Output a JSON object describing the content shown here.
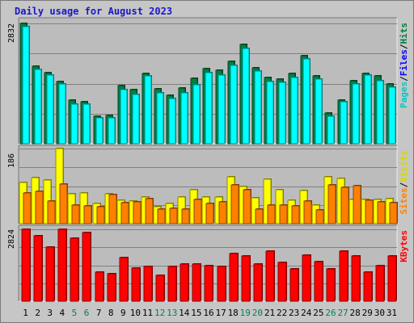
{
  "title": "Daily usage for August 2023",
  "chart_data": [
    {
      "type": "bar",
      "panel": "hits-files-pages",
      "categories": [
        "1",
        "2",
        "3",
        "4",
        "5",
        "6",
        "7",
        "8",
        "9",
        "10",
        "11",
        "12",
        "13",
        "14",
        "15",
        "16",
        "17",
        "18",
        "19",
        "20",
        "21",
        "22",
        "23",
        "24",
        "25",
        "26",
        "27",
        "28",
        "29",
        "30",
        "31"
      ],
      "weekend_days": [
        "5",
        "6",
        "12",
        "13",
        "19",
        "20",
        "26",
        "27"
      ],
      "y_max_label": "2832",
      "ylim": [
        0,
        2832
      ],
      "grid": true,
      "series": [
        {
          "name": "Hits",
          "color": "#008040",
          "values": [
            2832,
            1819,
            1669,
            1469,
            1028,
            990,
            652,
            668,
            1360,
            1275,
            1650,
            1291,
            1138,
            1312,
            1531,
            1763,
            1722,
            1939,
            2335,
            1793,
            1564,
            1522,
            1645,
            2075,
            1600,
            729,
            1032,
            1482,
            1647,
            1599,
            1399
          ]
        },
        {
          "name": "Files",
          "color": "#0000ff",
          "values": [
            2750,
            1750,
            1609,
            1399,
            932,
            940,
            602,
            614,
            1274,
            1167,
            1595,
            1195,
            1061,
            1191,
            1390,
            1674,
            1612,
            1836,
            2250,
            1715,
            1463,
            1440,
            1566,
            1995,
            1524,
            650,
            979,
            1407,
            1619,
            1487,
            1325
          ]
        },
        {
          "name": "Pages",
          "color": "#00ffff",
          "values": [
            2750,
            1750,
            1609,
            1399,
            932,
            940,
            602,
            614,
            1274,
            1167,
            1595,
            1195,
            1061,
            1191,
            1390,
            1674,
            1612,
            1836,
            2250,
            1715,
            1463,
            1440,
            1566,
            1995,
            1524,
            650,
            979,
            1407,
            1619,
            1487,
            1325
          ]
        }
      ],
      "legend_labels": [
        "Pages",
        "Files",
        "Hits"
      ]
    },
    {
      "type": "bar",
      "panel": "visits-sites",
      "categories": [
        "1",
        "2",
        "3",
        "4",
        "5",
        "6",
        "7",
        "8",
        "9",
        "10",
        "11",
        "12",
        "13",
        "14",
        "15",
        "16",
        "17",
        "18",
        "19",
        "20",
        "21",
        "22",
        "23",
        "24",
        "25",
        "26",
        "27",
        "28",
        "29",
        "30",
        "31"
      ],
      "y_max_label": "186",
      "ylim": [
        0,
        186
      ],
      "grid": true,
      "series": [
        {
          "name": "Visits",
          "color": "#ffff00",
          "values": [
            103,
            113,
            107,
            186,
            73,
            75,
            51,
            73,
            57,
            55,
            65,
            41,
            51,
            65,
            83,
            66,
            66,
            115,
            92,
            64,
            110,
            83,
            57,
            82,
            45,
            115,
            112,
            59,
            60,
            59,
            62
          ]
        },
        {
          "name": "Sites",
          "color": "#ff8000",
          "values": [
            75,
            79,
            56,
            98,
            45,
            44,
            42,
            71,
            52,
            54,
            62,
            35,
            37,
            36,
            59,
            49,
            54,
            96,
            84,
            35,
            46,
            46,
            44,
            55,
            34,
            96,
            90,
            94,
            58,
            54,
            52
          ]
        }
      ],
      "legend_labels": [
        "Sites",
        "Visits"
      ]
    },
    {
      "type": "bar",
      "panel": "kbytes",
      "categories": [
        "1",
        "2",
        "3",
        "4",
        "5",
        "6",
        "7",
        "8",
        "9",
        "10",
        "11",
        "12",
        "13",
        "14",
        "15",
        "16",
        "17",
        "18",
        "19",
        "20",
        "21",
        "22",
        "23",
        "24",
        "25",
        "26",
        "27",
        "28",
        "29",
        "30",
        "31"
      ],
      "y_max_label": "2824",
      "ylim": [
        0,
        2824
      ],
      "grid": true,
      "series": [
        {
          "name": "KBytes",
          "color": "#ff0000",
          "values": [
            2824,
            2559,
            2127,
            2824,
            2476,
            2693,
            1158,
            1084,
            1723,
            1288,
            1359,
            1003,
            1361,
            1454,
            1454,
            1402,
            1378,
            1867,
            1775,
            1462,
            1964,
            1513,
            1282,
            1821,
            1549,
            1283,
            1954,
            1768,
            1140,
            1387,
            1787
          ]
        }
      ],
      "legend_labels": [
        "KBytes"
      ]
    }
  ]
}
